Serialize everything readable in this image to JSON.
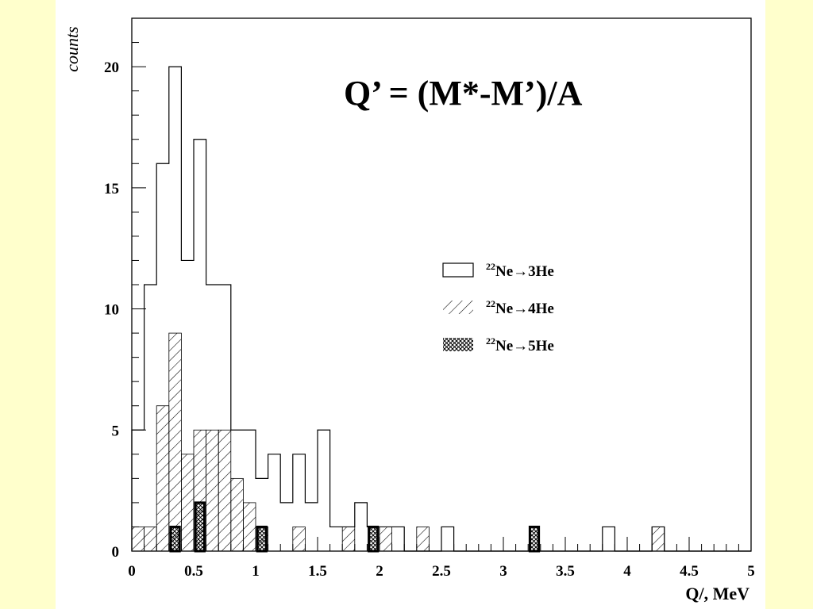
{
  "colors": {
    "background": "#FFFFCC",
    "panel": "#FFFFFF",
    "ink": "#000000"
  },
  "chart_data": {
    "type": "bar",
    "title": "Q’ = (M*-M’)/A",
    "xlabel": "Q/, MeV",
    "ylabel": "counts",
    "xlim": [
      0,
      5
    ],
    "ylim": [
      0,
      22
    ],
    "bin_width": 0.1,
    "x_ticks": [
      0,
      0.5,
      1,
      1.5,
      2,
      2.5,
      3,
      3.5,
      4,
      4.5,
      5
    ],
    "x_tick_labels": [
      "0",
      "0.5",
      "1",
      "1.5",
      "2",
      "2.5",
      "3",
      "3.5",
      "4",
      "4.5",
      "5"
    ],
    "y_ticks": [
      0,
      5,
      10,
      15,
      20
    ],
    "y_tick_labels": [
      "0",
      "5",
      "10",
      "15",
      "20"
    ],
    "legend": {
      "placement": "center-right",
      "entries": [
        {
          "prefix": "22",
          "text": "Ne→3He",
          "style": "open"
        },
        {
          "prefix": "22",
          "text": "Ne→4He",
          "style": "hatched"
        },
        {
          "prefix": "22",
          "text": "Ne→5He",
          "style": "cross-hatched"
        }
      ]
    },
    "series": [
      {
        "name": "22Ne→3He",
        "style": "open",
        "values": [
          5,
          11,
          16,
          20,
          12,
          17,
          11,
          11,
          5,
          5,
          3,
          4,
          2,
          4,
          2,
          5,
          1,
          1,
          2,
          1,
          1,
          1,
          0,
          0,
          0,
          1,
          0,
          0,
          0,
          0,
          0,
          0,
          0,
          0,
          0,
          0,
          0,
          0,
          1,
          0,
          0,
          0,
          1,
          0,
          0,
          0,
          0,
          0,
          0,
          0
        ]
      },
      {
        "name": "22Ne→4He",
        "style": "hatched",
        "values": [
          1,
          1,
          6,
          9,
          4,
          5,
          5,
          5,
          3,
          2,
          1,
          0,
          0,
          1,
          0,
          0,
          0,
          1,
          0,
          0,
          1,
          0,
          0,
          1,
          0,
          0,
          0,
          0,
          0,
          0,
          0,
          0,
          0,
          0,
          0,
          0,
          0,
          0,
          0,
          0,
          0,
          0,
          1,
          0,
          0,
          0,
          0,
          0,
          0,
          0
        ]
      },
      {
        "name": "22Ne→5He",
        "style": "cross-hatched",
        "values": [
          0,
          0,
          0,
          1,
          0,
          2,
          0,
          0,
          0,
          0,
          1,
          0,
          0,
          0,
          0,
          0,
          0,
          0,
          0,
          1,
          0,
          0,
          0,
          0,
          0,
          0,
          0,
          0,
          0,
          0,
          0,
          0,
          1,
          0,
          0,
          0,
          0,
          0,
          0,
          0,
          0,
          0,
          0,
          0,
          0,
          0,
          0,
          0,
          0,
          0
        ]
      }
    ]
  }
}
